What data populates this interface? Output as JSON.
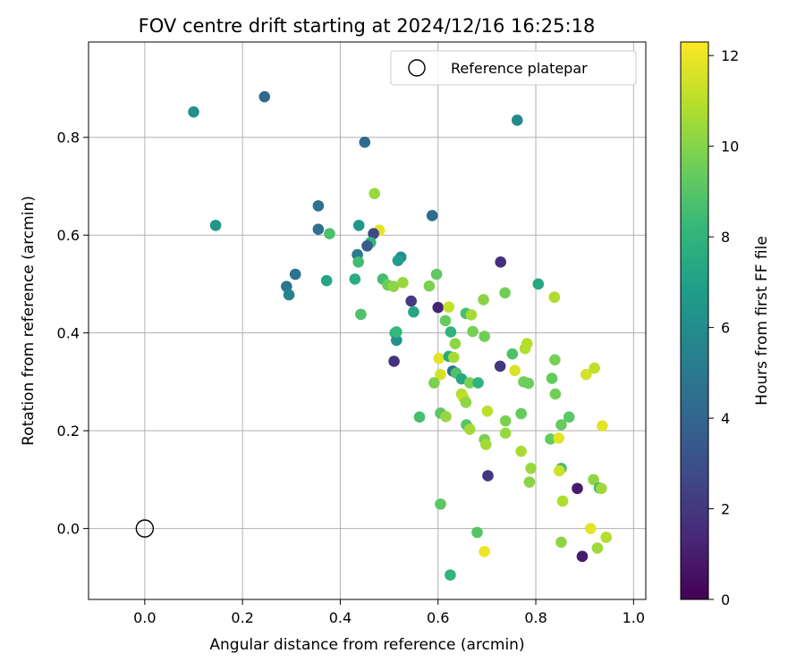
{
  "chart_data": {
    "type": "scatter",
    "title": "FOV centre drift starting at 2024/12/16 16:25:18",
    "xlabel": "Angular distance from reference (arcmin)",
    "ylabel": "Rotation from reference (arcmin)",
    "xlim": [
      -0.115,
      1.025
    ],
    "ylim": [
      -0.145,
      0.995
    ],
    "xticks": [
      0.0,
      0.2,
      0.4,
      0.6,
      0.8,
      1.0
    ],
    "xtick_labels": [
      "0.0",
      "0.2",
      "0.4",
      "0.6",
      "0.8",
      "1.0"
    ],
    "yticks": [
      0.0,
      0.2,
      0.4,
      0.6,
      0.8
    ],
    "ytick_labels": [
      "0.0",
      "0.2",
      "0.4",
      "0.6",
      "0.8"
    ],
    "grid": true,
    "legend": {
      "position": "top-right",
      "label": "Reference platepar"
    },
    "reference_point": {
      "x": 0.0,
      "y": 0.0
    },
    "colorbar": {
      "label": "Hours from first FF file",
      "colormap": "viridis",
      "range": [
        0,
        12.3
      ],
      "ticks": [
        0,
        2,
        4,
        6,
        8,
        10,
        12
      ],
      "tick_labels": [
        "0",
        "2",
        "4",
        "6",
        "8",
        "10",
        "12"
      ]
    },
    "series": [
      {
        "points": [
          [
            0.1,
            0.852,
            6.2
          ],
          [
            0.245,
            0.883,
            4.2
          ],
          [
            0.145,
            0.62,
            6.5
          ],
          [
            0.45,
            0.79,
            4.3
          ],
          [
            0.762,
            0.835,
            5.8
          ],
          [
            0.355,
            0.66,
            4.6
          ],
          [
            0.355,
            0.612,
            4.4
          ],
          [
            0.438,
            0.62,
            6.5
          ],
          [
            0.378,
            0.603,
            8.7
          ],
          [
            0.47,
            0.685,
            10.4
          ],
          [
            0.48,
            0.61,
            11.8
          ],
          [
            0.468,
            0.603,
            2.6
          ],
          [
            0.462,
            0.585,
            8.0
          ],
          [
            0.455,
            0.578,
            3.5
          ],
          [
            0.435,
            0.56,
            5.1
          ],
          [
            0.437,
            0.545,
            8.5
          ],
          [
            0.524,
            0.555,
            6.2
          ],
          [
            0.518,
            0.548,
            6.8
          ],
          [
            0.588,
            0.64,
            4.3
          ],
          [
            0.308,
            0.52,
            4.6
          ],
          [
            0.29,
            0.495,
            4.8
          ],
          [
            0.295,
            0.478,
            5.5
          ],
          [
            0.372,
            0.507,
            7.2
          ],
          [
            0.43,
            0.51,
            7.6
          ],
          [
            0.487,
            0.51,
            8.5
          ],
          [
            0.497,
            0.498,
            9.5
          ],
          [
            0.509,
            0.495,
            10.2
          ],
          [
            0.528,
            0.503,
            10.4
          ],
          [
            0.442,
            0.438,
            8.8
          ],
          [
            0.545,
            0.465,
            2.1
          ],
          [
            0.6,
            0.452,
            1.2
          ],
          [
            0.582,
            0.496,
            9.8
          ],
          [
            0.597,
            0.52,
            9.2
          ],
          [
            0.728,
            0.545,
            1.6
          ],
          [
            0.737,
            0.482,
            9.6
          ],
          [
            0.805,
            0.5,
            7.4
          ],
          [
            0.838,
            0.473,
            10.8
          ],
          [
            0.55,
            0.443,
            7.2
          ],
          [
            0.622,
            0.453,
            11.2
          ],
          [
            0.657,
            0.44,
            8.6
          ],
          [
            0.668,
            0.437,
            10.6
          ],
          [
            0.693,
            0.468,
            10.1
          ],
          [
            0.512,
            0.4,
            7.9
          ],
          [
            0.515,
            0.385,
            6.2
          ],
          [
            0.515,
            0.402,
            8.2
          ],
          [
            0.51,
            0.342,
            1.8
          ],
          [
            0.615,
            0.425,
            9.4
          ],
          [
            0.626,
            0.402,
            8.0
          ],
          [
            0.671,
            0.403,
            9.7
          ],
          [
            0.695,
            0.393,
            9.6
          ],
          [
            0.635,
            0.378,
            10.2
          ],
          [
            0.602,
            0.348,
            11.8
          ],
          [
            0.622,
            0.352,
            7.5
          ],
          [
            0.632,
            0.35,
            10.6
          ],
          [
            0.605,
            0.315,
            11.5
          ],
          [
            0.592,
            0.298,
            9.8
          ],
          [
            0.63,
            0.322,
            4.5
          ],
          [
            0.637,
            0.318,
            8.8
          ],
          [
            0.648,
            0.306,
            7.3
          ],
          [
            0.727,
            0.332,
            1.9
          ],
          [
            0.752,
            0.357,
            8.8
          ],
          [
            0.778,
            0.368,
            10.9
          ],
          [
            0.782,
            0.378,
            10.9
          ],
          [
            0.757,
            0.323,
            11.6
          ],
          [
            0.839,
            0.345,
            9.7
          ],
          [
            0.833,
            0.307,
            9.3
          ],
          [
            0.775,
            0.3,
            9.6
          ],
          [
            0.665,
            0.298,
            9.8
          ],
          [
            0.682,
            0.298,
            7.9
          ],
          [
            0.785,
            0.297,
            9.5
          ],
          [
            0.84,
            0.275,
            9.6
          ],
          [
            0.903,
            0.315,
            11.5
          ],
          [
            0.92,
            0.328,
            11.1
          ],
          [
            0.648,
            0.275,
            10.9
          ],
          [
            0.652,
            0.268,
            11.1
          ],
          [
            0.657,
            0.258,
            10.2
          ],
          [
            0.562,
            0.228,
            8.6
          ],
          [
            0.605,
            0.236,
            9.1
          ],
          [
            0.616,
            0.229,
            10.3
          ],
          [
            0.658,
            0.212,
            9.0
          ],
          [
            0.665,
            0.203,
            10.6
          ],
          [
            0.701,
            0.24,
            11.1
          ],
          [
            0.738,
            0.22,
            9.8
          ],
          [
            0.77,
            0.235,
            9.3
          ],
          [
            0.852,
            0.212,
            9.4
          ],
          [
            0.868,
            0.228,
            9.1
          ],
          [
            0.738,
            0.195,
            10.4
          ],
          [
            0.695,
            0.182,
            9.7
          ],
          [
            0.698,
            0.172,
            10.6
          ],
          [
            0.77,
            0.158,
            10.7
          ],
          [
            0.83,
            0.183,
            9.3
          ],
          [
            0.847,
            0.185,
            11.8
          ],
          [
            0.936,
            0.21,
            11.8
          ],
          [
            0.79,
            0.123,
            10.4
          ],
          [
            0.852,
            0.123,
            8.6
          ],
          [
            0.848,
            0.118,
            11.4
          ],
          [
            0.787,
            0.095,
            10.1
          ],
          [
            0.702,
            0.108,
            1.9
          ],
          [
            0.605,
            0.05,
            9.1
          ],
          [
            0.885,
            0.082,
            0.9
          ],
          [
            0.918,
            0.1,
            10.2
          ],
          [
            0.93,
            0.083,
            8.3
          ],
          [
            0.934,
            0.082,
            10.5
          ],
          [
            0.855,
            0.056,
            10.8
          ],
          [
            0.912,
            0.0,
            11.8
          ],
          [
            0.68,
            -0.008,
            9.0
          ],
          [
            0.852,
            -0.028,
            10.2
          ],
          [
            0.926,
            -0.04,
            10.5
          ],
          [
            0.944,
            -0.018,
            10.9
          ],
          [
            0.695,
            -0.047,
            12.0
          ],
          [
            0.895,
            -0.057,
            0.9
          ],
          [
            0.625,
            -0.095,
            8.0
          ]
        ]
      }
    ]
  }
}
